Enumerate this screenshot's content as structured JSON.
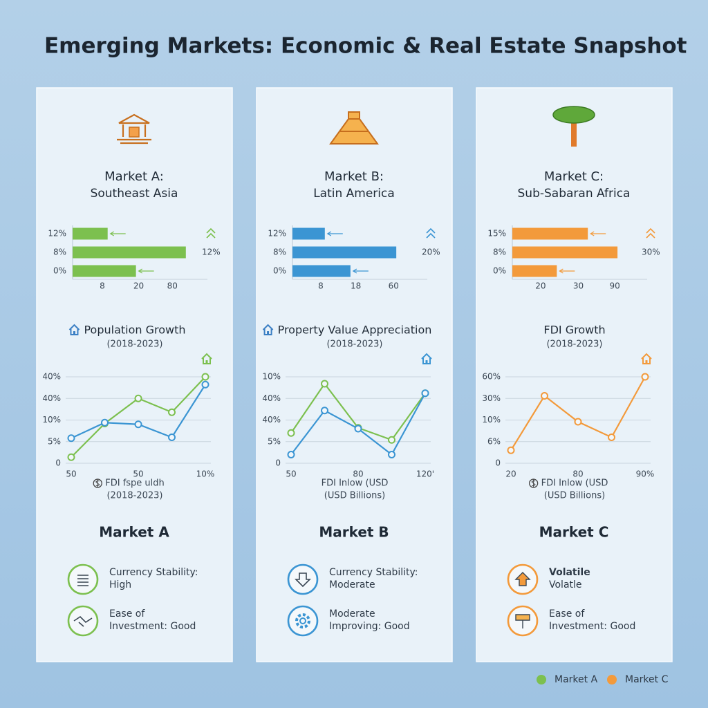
{
  "title": "Emerging Markets: Economic & Real Estate Snapshot",
  "panels": [
    {
      "heading": "Market A:",
      "region": "Southeast Asia",
      "color": "#7cc04f",
      "bar_chart": {
        "type": "bar",
        "categories": [
          "12%",
          "8%",
          "0%"
        ],
        "values": [
          26,
          84,
          47
        ],
        "xlim": [
          0,
          100
        ],
        "xticks": [
          {
            "value": 22,
            "label": "8"
          },
          {
            "value": 49,
            "label": "20"
          },
          {
            "value": 74,
            "label": "80"
          }
        ],
        "annotation": "12%"
      },
      "line_chart": {
        "type": "line",
        "title": "Population Growth",
        "subtitle": "(2018-2023)",
        "x_label": "FDI fspe uldh",
        "x_sublabel": "(2018-2023)",
        "categories": [
          "50",
          null,
          "50",
          null,
          "10%"
        ],
        "series": [
          {
            "color": "#7cc04f",
            "values": [
              7,
              46,
              75,
              59,
              100
            ]
          },
          {
            "color": "#3b95d3",
            "values": [
              29,
              47,
              45,
              30,
              91
            ]
          }
        ],
        "ylim": [
          0,
          100
        ],
        "yticks": [
          0,
          {
            "value": 25,
            "label": "5%"
          },
          {
            "value": 50,
            "label": "10%"
          },
          {
            "value": 75,
            "label": "40%"
          },
          {
            "value": 100,
            "label": "40%"
          }
        ],
        "grid": true
      },
      "name": "Market A",
      "indicators": [
        {
          "lines": [
            "Currency Stability:",
            "High"
          ]
        },
        {
          "lines": [
            "Ease of",
            "Investment: Good"
          ]
        }
      ]
    },
    {
      "heading": "Market B:",
      "region": "Latin America",
      "color": "#3b95d3",
      "bar_chart": {
        "type": "bar",
        "categories": [
          "12%",
          "8%",
          "0%"
        ],
        "values": [
          24,
          77,
          43
        ],
        "xlim": [
          0,
          100
        ],
        "xticks": [
          {
            "value": 21,
            "label": "8"
          },
          {
            "value": 47,
            "label": "18"
          },
          {
            "value": 75,
            "label": "60"
          }
        ],
        "annotation": "20%"
      },
      "line_chart": {
        "type": "line",
        "title": "Property Value Appreciation",
        "subtitle": "(2018-2023)",
        "x_label": "FDI Inlow (USD",
        "x_sublabel": "(USD Billions)",
        "categories": [
          "50",
          null,
          "80",
          null,
          "120'"
        ],
        "series": [
          {
            "color": "#7cc04f",
            "values": [
              35,
              92,
              41,
              27,
              81
            ]
          },
          {
            "color": "#3b95d3",
            "values": [
              10,
              61,
              40,
              10,
              81
            ]
          }
        ],
        "ylim": [
          0,
          100
        ],
        "yticks": [
          0,
          {
            "value": 25,
            "label": "5%"
          },
          {
            "value": 50,
            "label": "40%"
          },
          {
            "value": 75,
            "label": "40%"
          },
          {
            "value": 100,
            "label": "10%"
          }
        ],
        "grid": true
      },
      "name": "Market B",
      "indicators": [
        {
          "lines": [
            "Currency Stability:",
            "Moderate"
          ]
        },
        {
          "lines": [
            "Moderate",
            "Improving: Good"
          ]
        }
      ]
    },
    {
      "heading": "Market C:",
      "region": "Sub-Sabaran Africa",
      "color": "#f39a3b",
      "bar_chart": {
        "type": "bar",
        "categories": [
          "15%",
          "8%",
          "0%"
        ],
        "values": [
          56,
          78,
          33
        ],
        "xlim": [
          0,
          100
        ],
        "xticks": [
          {
            "value": 21,
            "label": "20"
          },
          {
            "value": 49,
            "label": "30"
          },
          {
            "value": 76,
            "label": "90"
          }
        ],
        "annotation": "30%"
      },
      "line_chart": {
        "type": "line",
        "title": "FDI Growth",
        "subtitle": "(2018-2023)",
        "x_label": "FDI Inlow (USD",
        "x_sublabel": "(USD Billions)",
        "categories": [
          "20",
          null,
          "80",
          null,
          "90%"
        ],
        "series": [
          {
            "color": "#f39a3b",
            "values": [
              15,
              78,
              48,
              30,
              100
            ]
          }
        ],
        "ylim": [
          0,
          100
        ],
        "yticks": [
          0,
          {
            "value": 25,
            "label": "6%"
          },
          {
            "value": 50,
            "label": "10%"
          },
          {
            "value": 75,
            "label": "30%"
          },
          {
            "value": 100,
            "label": "60%"
          }
        ],
        "grid": true
      },
      "name": "Market C",
      "indicators": [
        {
          "lines": [
            "Volatile",
            "Volatle"
          ]
        },
        {
          "lines": [
            "Ease of",
            "Investment: Good"
          ]
        }
      ]
    }
  ],
  "legend": [
    {
      "name": "Market A",
      "color": "#7cc04f"
    },
    {
      "name": "Market C",
      "color": "#f39a3b"
    }
  ]
}
